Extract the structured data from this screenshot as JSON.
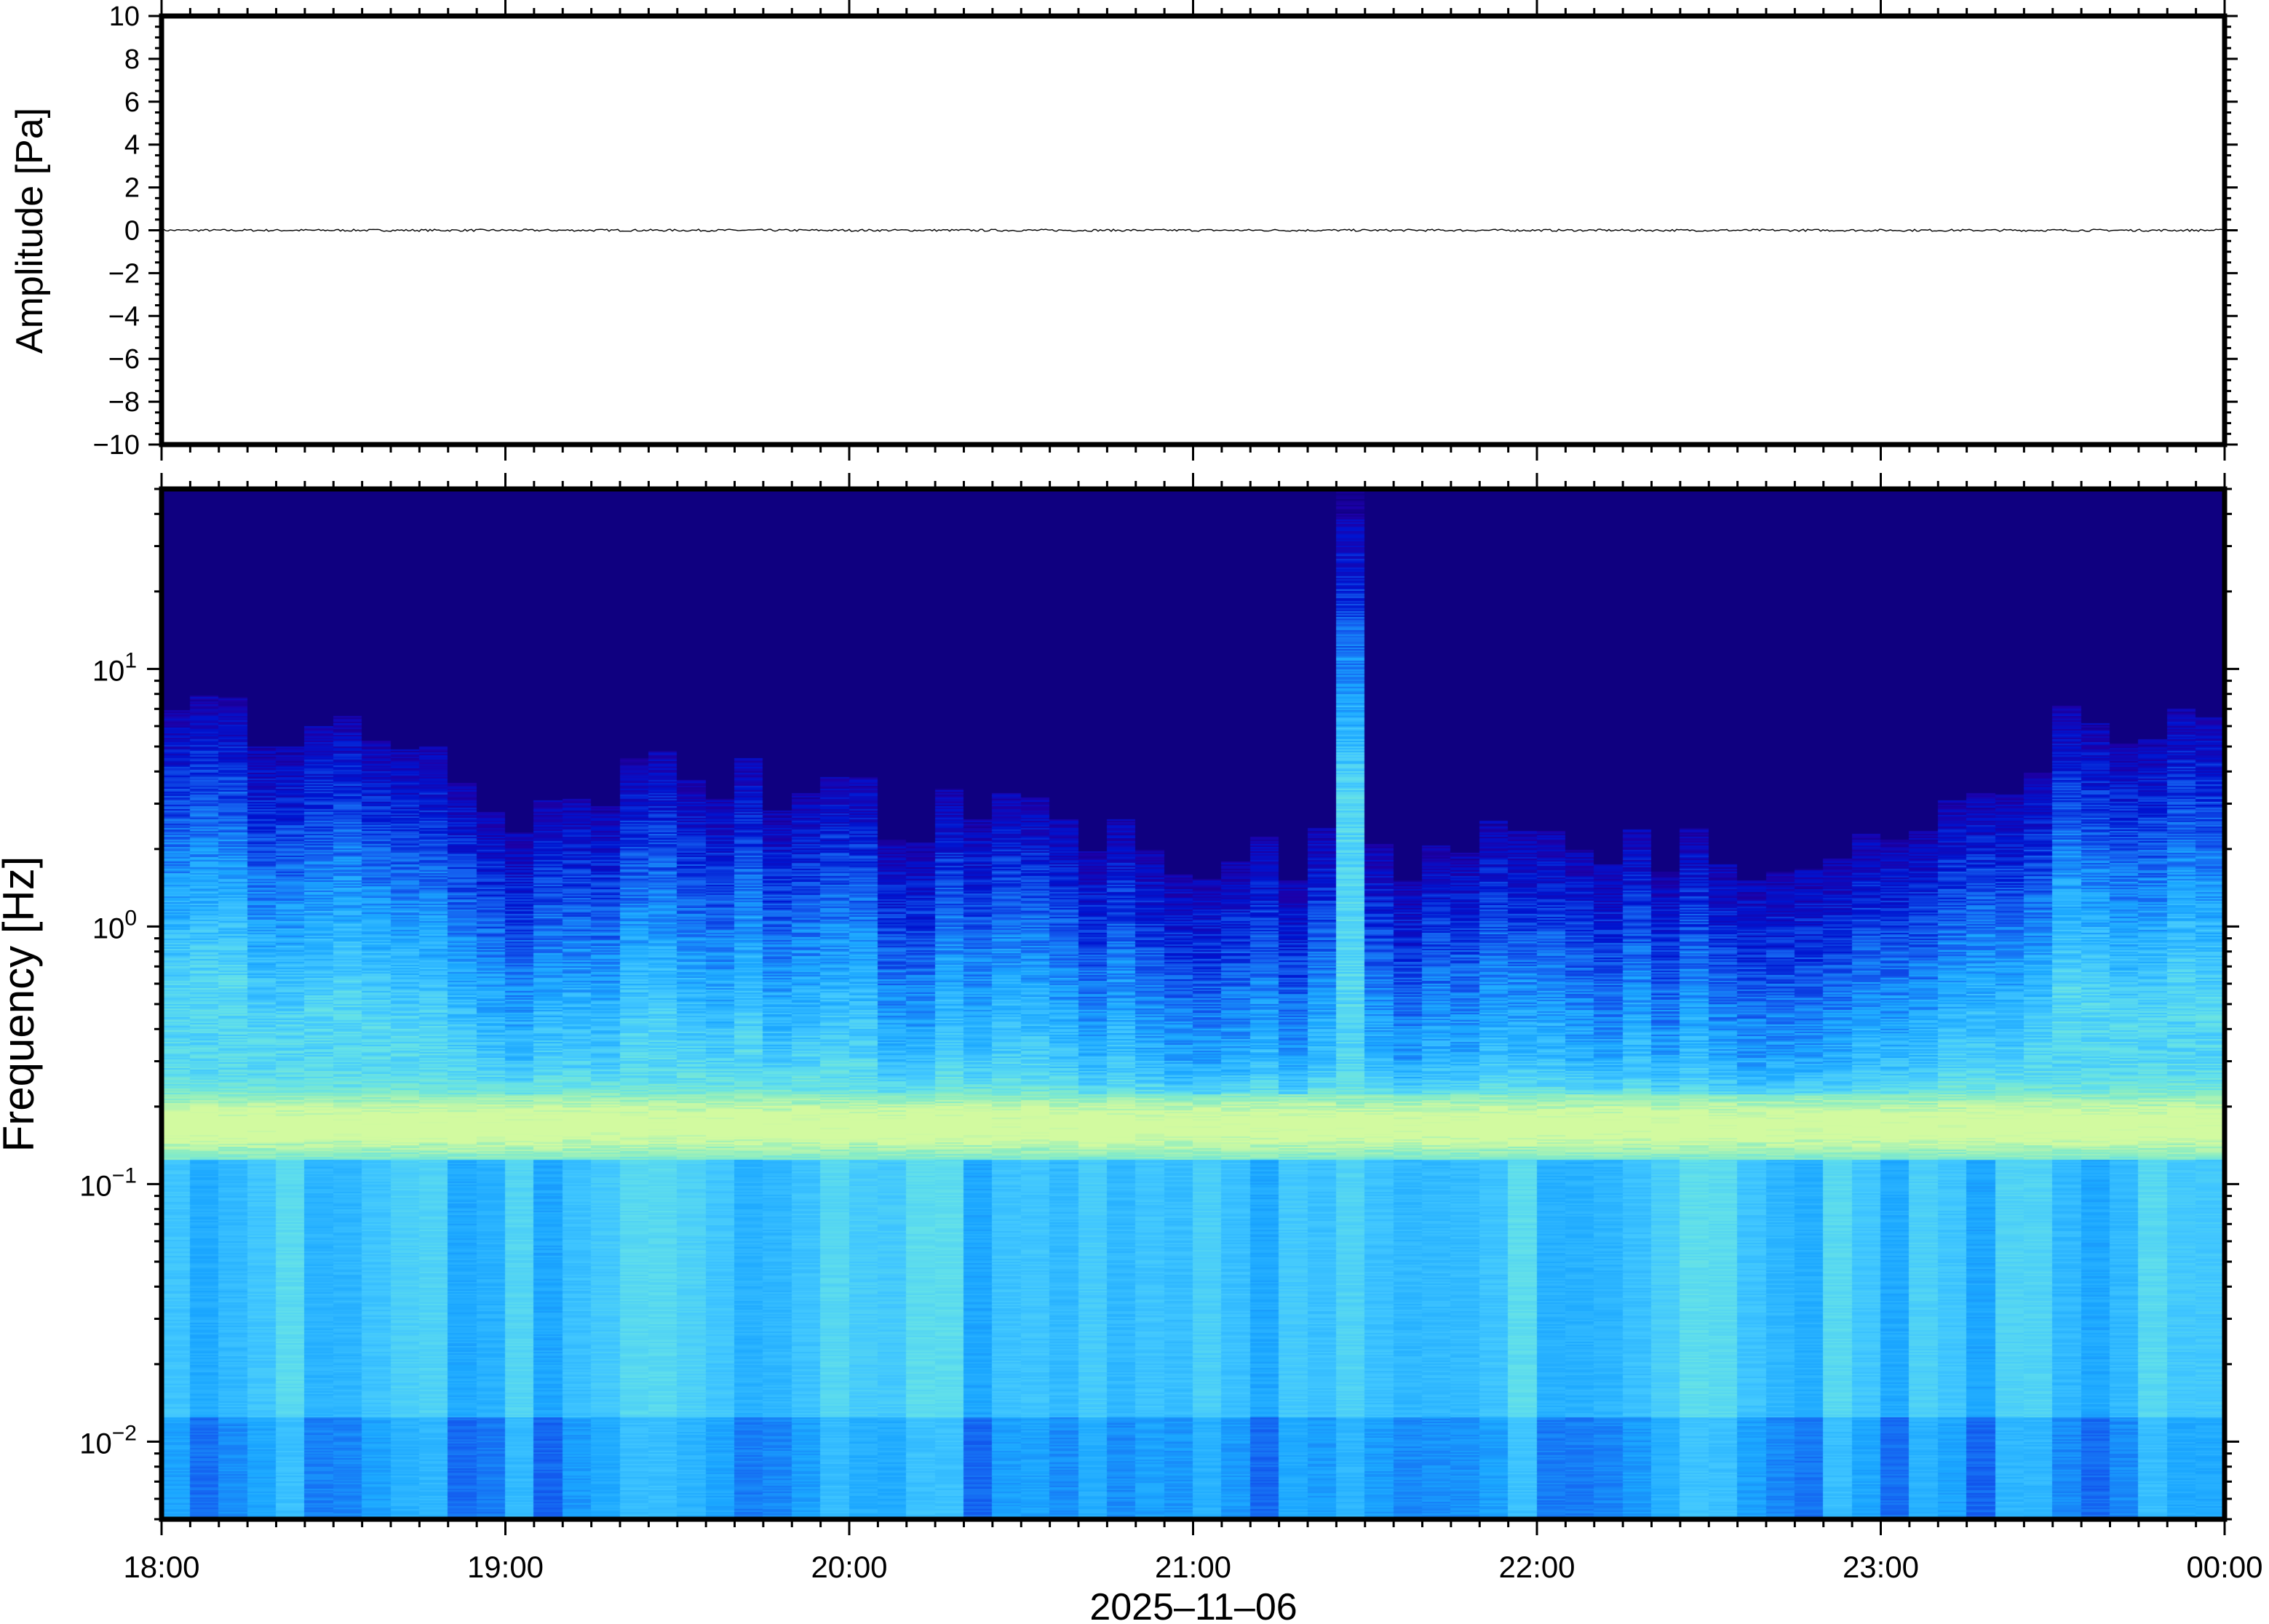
{
  "chart_data": [
    {
      "type": "line",
      "ylabel": "Amplitude [Pa]",
      "ylim": [
        -10,
        10
      ],
      "y_ticks": [
        "10",
        "8",
        "6",
        "4",
        "2",
        "0",
        "−2",
        "−4",
        "−6",
        "−8",
        "−10"
      ],
      "y_tick_values": [
        10,
        8,
        6,
        4,
        2,
        0,
        -2,
        -4,
        -6,
        -8,
        -10
      ],
      "x_range": [
        "18:00",
        "00:00"
      ],
      "series": [
        {
          "approx_amplitude_pa": 0.05
        }
      ],
      "line_color": "#000000"
    },
    {
      "type": "heatmap",
      "ylabel": "Frequency [Hz]",
      "xlabel": "2025–11–06",
      "y_scale": "log",
      "ylim": [
        0.005,
        50
      ],
      "y_ticks": [
        {
          "base": "10",
          "exp": "1",
          "value": 10
        },
        {
          "base": "10",
          "exp": "0",
          "value": 1
        },
        {
          "base": "10",
          "exp": "−1",
          "value": 0.1
        },
        {
          "base": "10",
          "exp": "−2",
          "value": 0.01
        }
      ],
      "x_ticks": [
        "18:00",
        "19:00",
        "20:00",
        "21:00",
        "22:00",
        "23:00",
        "00:00"
      ],
      "time_bin_minutes": 5,
      "dominant_band_hz": 0.17,
      "upper_energy_limit_hz_by_half_hour": [
        8,
        5,
        3,
        4,
        3,
        2.5,
        2,
        2,
        2,
        2,
        2,
        6
      ],
      "transient": {
        "time": "21:25",
        "max_freq_hz": 40
      },
      "colormap": [
        "#0c0078",
        "#1c00a8",
        "#0014d0",
        "#1460f0",
        "#1aa6ff",
        "#40c6ff",
        "#62e0ea",
        "#88ecc4",
        "#d2faa0"
      ]
    }
  ]
}
